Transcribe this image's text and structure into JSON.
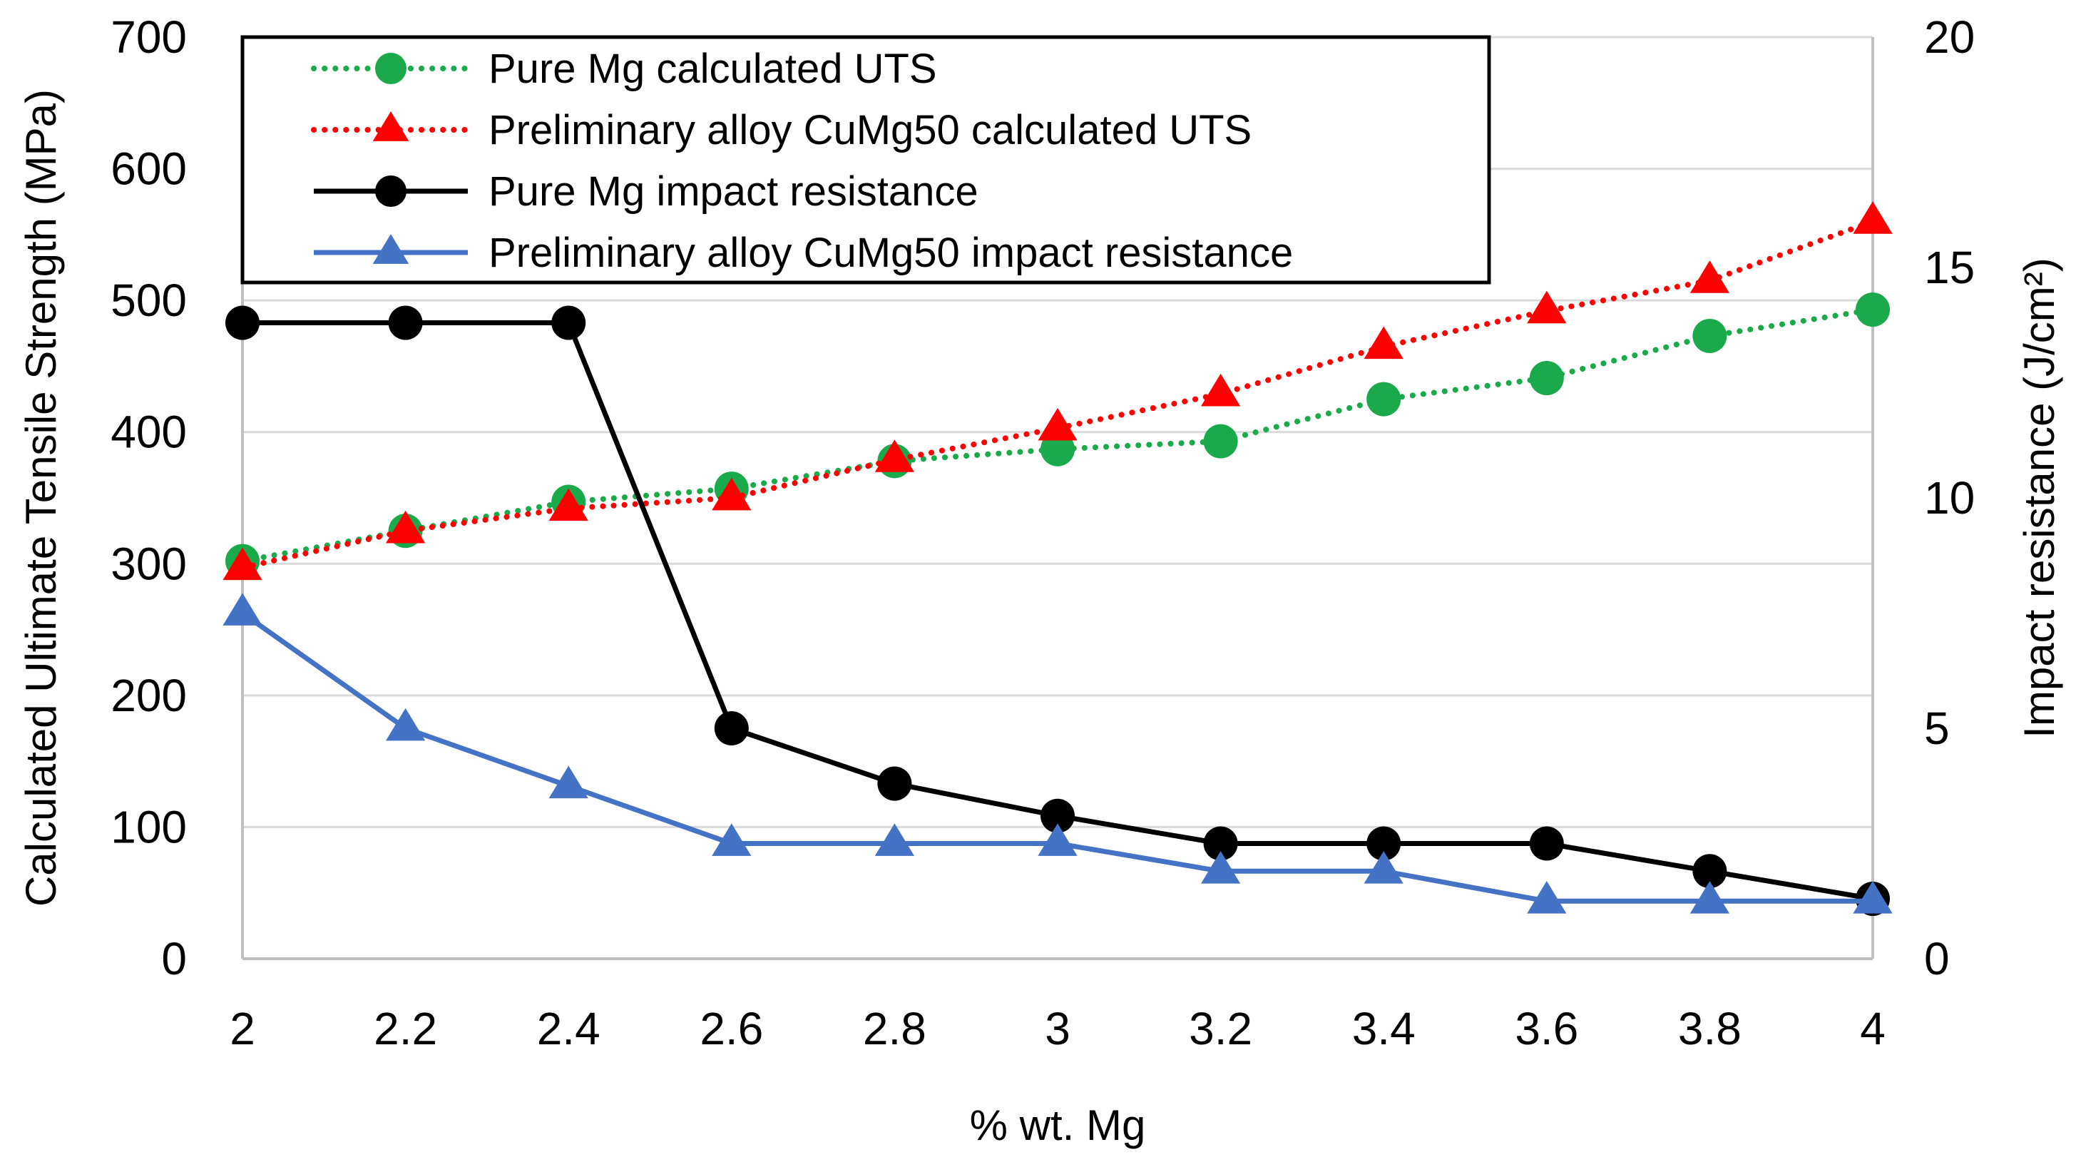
{
  "chart_data": {
    "type": "line",
    "xlabel": "% wt. Mg",
    "ylabel": "Calculated Ultimate Tensile Strength (MPa)",
    "y2label": "Impact resistance (J/cm²)",
    "x": [
      2,
      2.2,
      2.4,
      2.6,
      2.8,
      3,
      3.2,
      3.4,
      3.6,
      3.8,
      4
    ],
    "x_tick_labels": [
      "2",
      "2.2",
      "2.4",
      "2.6",
      "2.8",
      "3",
      "3.2",
      "3.4",
      "3.6",
      "3.8",
      "4"
    ],
    "xlim": [
      2,
      4
    ],
    "ylim": [
      0,
      700
    ],
    "y_ticks": [
      0,
      100,
      200,
      300,
      400,
      500,
      600,
      700
    ],
    "y2lim": [
      0,
      20
    ],
    "y2_ticks": [
      0,
      5,
      10,
      15,
      20
    ],
    "grid": true,
    "legend_position": "top-left",
    "series": [
      {
        "name": "Pure Mg calculated UTS",
        "axis": "left",
        "color": "#1aaa4b",
        "line_style": "dotted",
        "marker": "circle",
        "values": [
          302,
          325,
          347,
          357,
          378,
          387,
          393,
          425,
          441,
          473,
          493
        ]
      },
      {
        "name": "Preliminary alloy CuMg50 calculated UTS",
        "axis": "left",
        "color": "#ff0000",
        "line_style": "dotted",
        "marker": "triangle",
        "values": [
          297,
          325,
          342,
          350,
          379,
          403,
          429,
          465,
          492,
          515,
          560
        ]
      },
      {
        "name": "Pure Mg impact resistance",
        "axis": "right",
        "color": "#000000",
        "line_style": "solid",
        "marker": "circle",
        "values": [
          13.8,
          13.8,
          13.8,
          5.0,
          3.8,
          3.1,
          2.5,
          2.5,
          2.5,
          1.9,
          1.3
        ]
      },
      {
        "name": "Preliminary alloy CuMg50 impact resistance",
        "axis": "right",
        "color": "#4472c4",
        "line_style": "solid",
        "marker": "triangle",
        "values": [
          7.5,
          5.0,
          3.75,
          2.5,
          2.5,
          2.5,
          1.9,
          1.9,
          1.25,
          1.25,
          1.25
        ]
      }
    ]
  }
}
